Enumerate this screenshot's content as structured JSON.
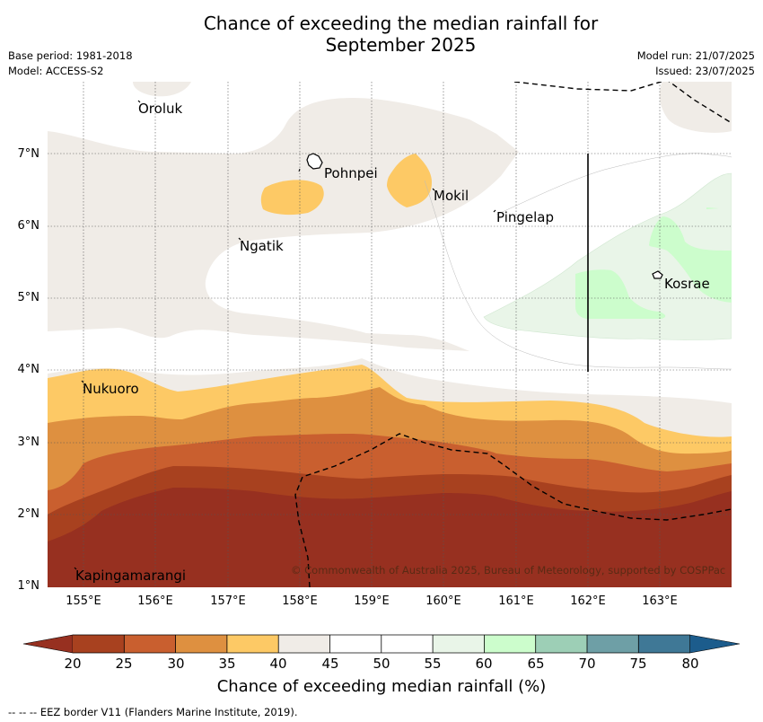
{
  "title": {
    "line1": "Chance of exceeding the median rainfall for",
    "line2": "September 2025"
  },
  "meta": {
    "base_period": "Base period: 1981-2018",
    "model": "Model: ACCESS-S2",
    "model_run": "Model run: 21/07/2025",
    "issued": "Issued: 23/07/2025"
  },
  "map": {
    "lon_range": [
      154.5,
      164.0
    ],
    "lat_range": [
      1.0,
      8.0
    ],
    "lat_ticks": [
      "1°N",
      "2°N",
      "3°N",
      "4°N",
      "5°N",
      "6°N",
      "7°N"
    ],
    "lon_ticks": [
      "155°E",
      "156°E",
      "157°E",
      "158°E",
      "159°E",
      "160°E",
      "161°E",
      "162°E",
      "163°E"
    ],
    "places": [
      {
        "name": "Oroluk",
        "lon": 155.75,
        "lat": 7.6
      },
      {
        "name": "Pohnpei",
        "lon": 158.3,
        "lat": 6.85
      },
      {
        "name": "Mokil",
        "lon": 159.76,
        "lat": 6.67
      },
      {
        "name": "Pingelap",
        "lon": 160.7,
        "lat": 6.21
      },
      {
        "name": "Ngatik",
        "lon": 157.15,
        "lat": 5.8
      },
      {
        "name": "Kosrae",
        "lon": 162.98,
        "lat": 5.32
      },
      {
        "name": "Nukuoro",
        "lon": 154.78,
        "lat": 3.85
      },
      {
        "name": "Kapingamarangi",
        "lon": 154.8,
        "lat": 1.08
      }
    ],
    "copyright": "© Commonwealth of Australia 2025, Bureau of Meteorology, supported by COSPPac",
    "colors": {
      "c20": "#a8411f",
      "c25": "#c95f2f",
      "c30": "#de9040",
      "c35": "#fdc965",
      "c40": "#f0ece7",
      "c55": "#e9f5e8",
      "c60": "#ccfdcc",
      "c15": "#973020"
    }
  },
  "colorbar": {
    "labels": [
      "20",
      "25",
      "30",
      "35",
      "40",
      "45",
      "50",
      "55",
      "60",
      "65",
      "70",
      "75",
      "80"
    ],
    "colors": [
      "#a8411f",
      "#c95f2f",
      "#de9040",
      "#fdc965",
      "#f0ece7",
      "#ffffff",
      "#ffffff",
      "#e9f5e8",
      "#ccfdcc",
      "#9dcfb6",
      "#6e9fa6",
      "#3f7896"
    ],
    "under_color": "#973020",
    "over_color": "#1c5c8c",
    "title": "Chance of exceeding median rainfall (%)"
  },
  "footnote": "--  --  -- EEZ border V11 (Flanders Marine Institute, 2019)."
}
